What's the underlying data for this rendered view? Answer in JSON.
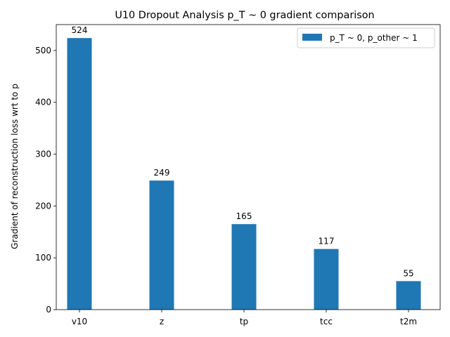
{
  "chart_data": {
    "type": "bar",
    "title": "U10 Dropout Analysis p_T ~ 0 gradient comparison",
    "xlabel": "",
    "ylabel": "Gradient of reconstruction loss wrt to p",
    "categories": [
      "v10",
      "z",
      "tp",
      "tcc",
      "t2m"
    ],
    "series": [
      {
        "name": "p_T ~ 0, p_other ~ 1",
        "values": [
          524,
          249,
          165,
          117,
          55
        ],
        "color": "#1f77b4"
      }
    ],
    "data_labels": [
      "524",
      "249",
      "165",
      "117",
      "55"
    ],
    "ylim": [
      0,
      550
    ],
    "yticks": [
      0,
      100,
      200,
      300,
      400,
      500
    ],
    "grid": false,
    "legend_position": "top-right"
  }
}
